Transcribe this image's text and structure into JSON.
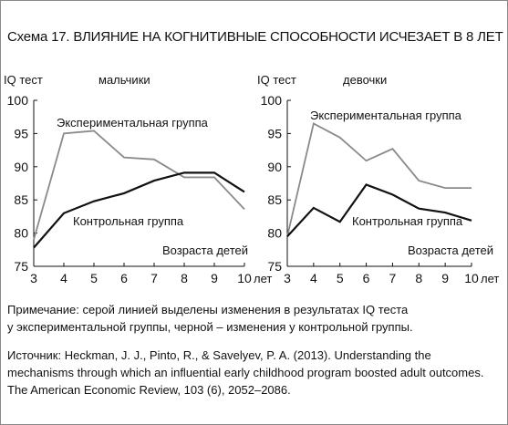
{
  "title": "Схема 17. ВЛИЯНИЕ НА КОГНИТИВНЫЕ СПОСОБНОСТИ ИСЧЕЗАЕТ В 8 ЛЕТ",
  "colors": {
    "experimental": "#8a8a8a",
    "control": "#111111",
    "axis": "#111111",
    "frame": "#8a8a8a"
  },
  "note_lines": [
    "Примечание: серой линией выделены изменения в результатах IQ теста",
    "у экспериментальной группы, черной – изменения у контрольной группы."
  ],
  "source_lines": [
    "Источник: Heckman, J. J., Pinto, R., & Savelyev, P. A. (2013). Understanding the",
    "mechanisms through which an influential early childhood program boosted adult outcomes.",
    "The American Economic Review, 103 (6), 2052–2086."
  ],
  "chart_data": [
    {
      "type": "line",
      "title": "мальчики",
      "ylabel": "IQ тест",
      "xlabel": "Возраста детей",
      "x_unit": "лет",
      "x": [
        3,
        4,
        5,
        6,
        7,
        8,
        9,
        10
      ],
      "ylim": [
        75,
        100
      ],
      "yticks": [
        75,
        80,
        85,
        90,
        95,
        100
      ],
      "grid": false,
      "series": [
        {
          "name": "Экспериментальная группа",
          "values": [
            79,
            95,
            95.4,
            91.4,
            91.1,
            88.4,
            88.4,
            83.6
          ]
        },
        {
          "name": "Контрольная группа",
          "values": [
            77.8,
            83,
            84.8,
            86,
            87.9,
            89.1,
            89.1,
            86.2
          ]
        }
      ]
    },
    {
      "type": "line",
      "title": "девочки",
      "ylabel": "IQ тест",
      "xlabel": "Возраста детей",
      "x_unit": "лет",
      "x": [
        3,
        4,
        5,
        6,
        7,
        8,
        9,
        10
      ],
      "ylim": [
        75,
        100
      ],
      "yticks": [
        75,
        80,
        85,
        90,
        95,
        100
      ],
      "grid": false,
      "series": [
        {
          "name": "Экспериментальная группа",
          "values": [
            79.5,
            96.5,
            94.4,
            90.9,
            92.7,
            87.9,
            86.8,
            86.8
          ]
        },
        {
          "name": "Контрольная группа",
          "values": [
            79.5,
            83.8,
            81.7,
            87.3,
            85.8,
            83.7,
            83.1,
            81.9
          ]
        }
      ]
    }
  ]
}
